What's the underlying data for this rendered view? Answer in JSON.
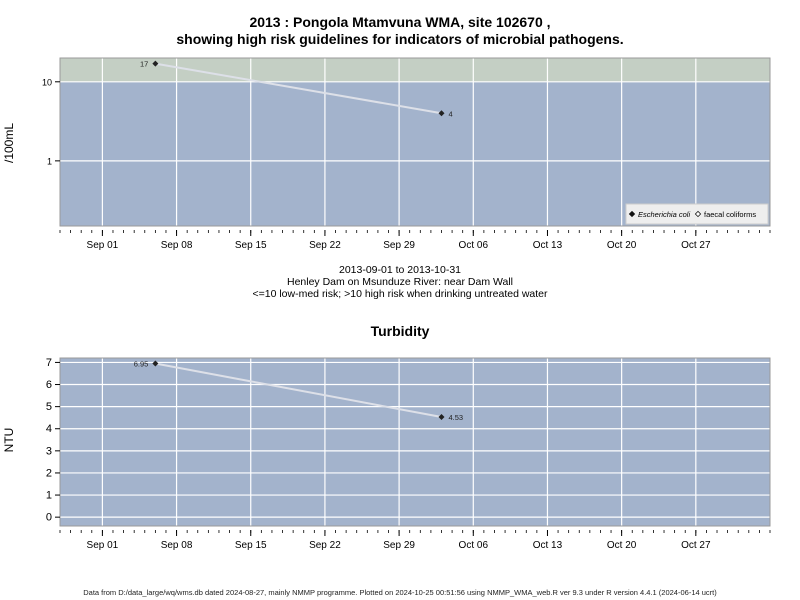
{
  "header": {
    "title_line1": "2013 : Pongola Mtamvuna WMA, site 102670 ,",
    "title_line2": "showing high risk guidelines for indicators of microbial pathogens."
  },
  "caption": {
    "line1": "2013-09-01 to 2013-10-31",
    "line2": "Henley Dam on Msunduze River: near Dam Wall",
    "line3": "<=10 low-med risk; >10 high risk when drinking untreated water"
  },
  "footer": {
    "text": "Data from D:/data_large/wq/wms.db dated 2024-08-27, mainly NMMP programme. Plotted on 2024-10-25 00:51:56 using NMMP_WMA_web.R ver 9.3 under R version 4.4.1 (2024-06-14 ucrt)"
  },
  "colors": {
    "panel_low": "#a3b3cc",
    "panel_high": "#c4cfc4",
    "gridline": "#ffffff",
    "series_line": "#dde0e8",
    "marker": "#222222"
  },
  "chart_data": [
    {
      "type": "line",
      "title": "",
      "ylabel": "/100mL",
      "yscale": "log",
      "ylim": [
        0.15,
        20
      ],
      "yticks": [
        1,
        10
      ],
      "ytick_labels": [
        "1",
        "10"
      ],
      "xlim": [
        "2013-08-28",
        "2013-11-03"
      ],
      "xticks": [
        "2013-09-01",
        "2013-09-08",
        "2013-09-15",
        "2013-09-22",
        "2013-09-29",
        "2013-10-06",
        "2013-10-13",
        "2013-10-20",
        "2013-10-27"
      ],
      "xtick_labels": [
        "Sep 01",
        "Sep 08",
        "Sep 15",
        "Sep 22",
        "Sep 29",
        "Oct 06",
        "Oct 13",
        "Oct 20",
        "Oct 27"
      ],
      "threshold": 10,
      "grid": true,
      "legend": {
        "placement": "bottom-right",
        "entries": [
          {
            "label": "Escherichia coli",
            "marker": "filled-diamond",
            "italic": true
          },
          {
            "label": "faecal coliforms",
            "marker": "open-diamond",
            "italic": false
          }
        ]
      },
      "series": [
        {
          "name": "Escherichia coli",
          "x": [
            "2013-09-06",
            "2013-10-03"
          ],
          "y": [
            17,
            4
          ],
          "labels": [
            "17",
            "4"
          ]
        }
      ]
    },
    {
      "type": "line",
      "title": "Turbidity",
      "ylabel": "NTU",
      "yscale": "linear",
      "ylim": [
        -0.4,
        7.2
      ],
      "yticks": [
        0,
        1,
        2,
        3,
        4,
        5,
        6,
        7
      ],
      "ytick_labels": [
        "0",
        "1",
        "2",
        "3",
        "4",
        "5",
        "6",
        "7"
      ],
      "xlim": [
        "2013-08-28",
        "2013-11-03"
      ],
      "xticks": [
        "2013-09-01",
        "2013-09-08",
        "2013-09-15",
        "2013-09-22",
        "2013-09-29",
        "2013-10-06",
        "2013-10-13",
        "2013-10-20",
        "2013-10-27"
      ],
      "xtick_labels": [
        "Sep 01",
        "Sep 08",
        "Sep 15",
        "Sep 22",
        "Sep 29",
        "Oct 06",
        "Oct 13",
        "Oct 20",
        "Oct 27"
      ],
      "grid": true,
      "series": [
        {
          "x": [
            "2013-09-06",
            "2013-10-03"
          ],
          "y": [
            6.95,
            4.53
          ],
          "labels": [
            "6.95",
            "4.53"
          ]
        }
      ]
    }
  ]
}
